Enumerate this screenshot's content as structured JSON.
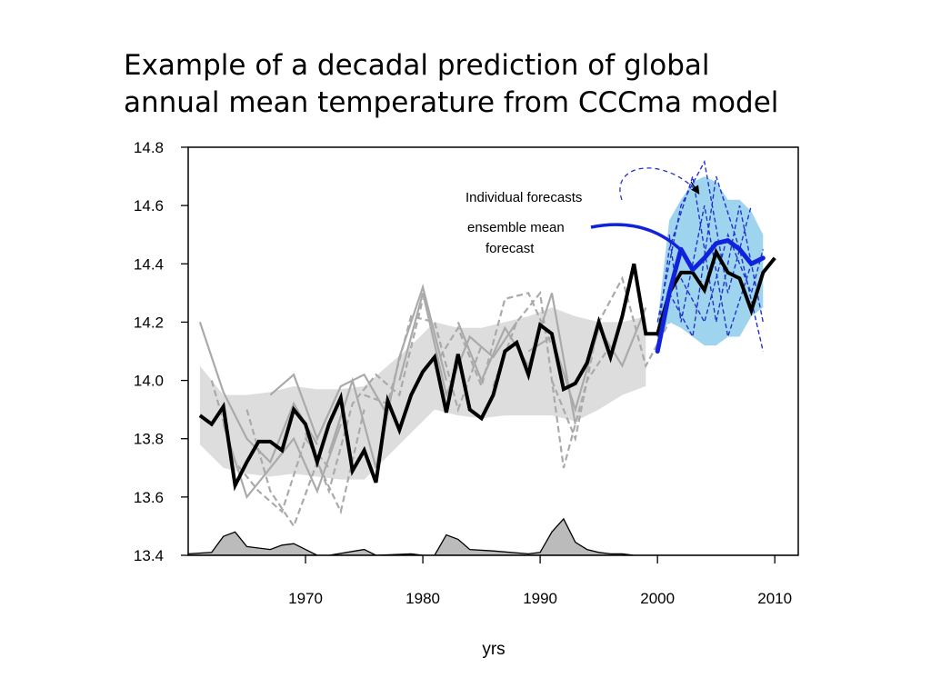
{
  "slide": {
    "title_lines": [
      "Example of a decadal prediction of global",
      "annual mean temperature from CCCma model"
    ]
  },
  "chart_data": {
    "type": "line",
    "xlabel": "yrs",
    "ylabel": "",
    "xlim": [
      1960,
      2012
    ],
    "ylim": [
      13.4,
      14.8
    ],
    "x_ticks": [
      1970,
      1980,
      1990,
      2000,
      2010
    ],
    "y_ticks": [
      "13.4",
      "13.6",
      "13.8",
      "14.0",
      "14.2",
      "14.4",
      "14.6",
      "14.8"
    ],
    "grid": false,
    "annotations": {
      "individual_forecasts": "Individual forecasts",
      "ensemble_mean_line1": "ensemble mean",
      "ensemble_mean_line2": "forecast"
    },
    "colors": {
      "observed": "#000000",
      "hindcast_members": "#aaaaaa",
      "hindcast_spread": "#dddddd",
      "forecast_members": "#2233cc",
      "forecast_mean": "#1122dd",
      "forecast_spread": "#9fd4ee",
      "volcanic": "#bbbbbb"
    },
    "series": [
      {
        "role": "observed",
        "x": [
          1961,
          1962,
          1963,
          1964,
          1965,
          1966,
          1967,
          1968,
          1969,
          1970,
          1971,
          1972,
          1973,
          1974,
          1975,
          1976,
          1977,
          1978,
          1979,
          1980,
          1981,
          1982,
          1983,
          1984,
          1985,
          1986,
          1987,
          1988,
          1989,
          1990,
          1991,
          1992,
          1993,
          1994,
          1995,
          1996,
          1997,
          1998,
          1999,
          2000,
          2001,
          2002,
          2003,
          2004,
          2005,
          2006,
          2007,
          2008,
          2009,
          2010
        ],
        "values": [
          13.88,
          13.85,
          13.91,
          13.64,
          13.72,
          13.79,
          13.79,
          13.76,
          13.9,
          13.85,
          13.72,
          13.85,
          13.94,
          13.69,
          13.76,
          13.65,
          13.93,
          13.83,
          13.95,
          14.03,
          14.08,
          13.89,
          14.09,
          13.9,
          13.87,
          13.95,
          14.1,
          14.13,
          14.02,
          14.19,
          14.16,
          13.97,
          13.99,
          14.06,
          14.2,
          14.08,
          14.22,
          14.4,
          14.16,
          14.16,
          14.3,
          14.37,
          14.37,
          14.31,
          14.44,
          14.37,
          14.35,
          14.24,
          14.37,
          14.42
        ]
      },
      {
        "role": "hindcast_spread",
        "x": [
          1961,
          1963,
          1965,
          1967,
          1969,
          1971,
          1973,
          1975,
          1977,
          1979,
          1981,
          1983,
          1985,
          1987,
          1989,
          1991,
          1993,
          1995,
          1997,
          1999
        ],
        "upper": [
          14.05,
          13.95,
          13.95,
          13.96,
          13.98,
          13.97,
          13.97,
          13.98,
          14.05,
          14.12,
          14.2,
          14.18,
          14.18,
          14.2,
          14.22,
          14.25,
          14.22,
          14.2,
          14.2,
          14.22
        ],
        "lower": [
          13.78,
          13.7,
          13.68,
          13.67,
          13.68,
          13.67,
          13.66,
          13.66,
          13.74,
          13.82,
          13.9,
          13.88,
          13.87,
          13.88,
          13.88,
          13.88,
          13.86,
          13.9,
          13.95,
          13.98
        ]
      },
      {
        "role": "hindcast_members",
        "members": [
          {
            "x": [
              1961,
              1963,
              1965,
              1967,
              1969,
              1971
            ],
            "values": [
              14.2,
              13.96,
              13.8,
              13.72,
              13.92,
              13.78
            ]
          },
          {
            "x": [
              1962,
              1964,
              1966,
              1968,
              1970,
              1972
            ],
            "values": [
              14.0,
              13.72,
              13.62,
              13.55,
              13.8,
              13.7
            ]
          },
          {
            "x": [
              1963,
              1965,
              1967,
              1969,
              1971,
              1973
            ],
            "values": [
              13.85,
              13.6,
              13.7,
              13.8,
              13.62,
              13.85
            ]
          },
          {
            "x": [
              1965,
              1967,
              1969,
              1971,
              1973,
              1975
            ],
            "values": [
              13.9,
              13.62,
              13.5,
              13.72,
              13.55,
              13.9
            ]
          },
          {
            "x": [
              1967,
              1969,
              1971,
              1973,
              1975,
              1977
            ],
            "values": [
              13.95,
              14.02,
              13.8,
              13.98,
              14.02,
              13.88
            ]
          },
          {
            "x": [
              1970,
              1972,
              1974,
              1976,
              1978,
              1980
            ],
            "values": [
              13.82,
              13.62,
              13.92,
              14.02,
              13.95,
              14.28
            ]
          },
          {
            "x": [
              1972,
              1974,
              1976,
              1978,
              1980,
              1982
            ],
            "values": [
              13.75,
              14.0,
              13.7,
              14.08,
              14.32,
              14.0
            ]
          },
          {
            "x": [
              1975,
              1977,
              1979,
              1981,
              1983,
              1985
            ],
            "values": [
              13.95,
              13.92,
              14.22,
              14.2,
              13.9,
              14.12
            ]
          },
          {
            "x": [
              1978,
              1980,
              1982,
              1984,
              1986,
              1988
            ],
            "values": [
              14.0,
              14.3,
              13.95,
              14.15,
              14.08,
              14.2
            ]
          },
          {
            "x": [
              1981,
              1983,
              1985,
              1987,
              1989,
              1991
            ],
            "values": [
              14.05,
              14.18,
              13.98,
              14.28,
              14.3,
              14.12
            ]
          },
          {
            "x": [
              1983,
              1985,
              1987,
              1989,
              1991,
              1993
            ],
            "values": [
              14.2,
              14.0,
              14.18,
              14.05,
              14.3,
              13.85
            ]
          },
          {
            "x": [
              1986,
              1988,
              1990,
              1992,
              1994,
              1996
            ],
            "values": [
              13.98,
              14.2,
              14.3,
              13.7,
              14.0,
              14.12
            ]
          },
          {
            "x": [
              1989,
              1991,
              1993,
              1995,
              1997,
              1999
            ],
            "values": [
              14.1,
              14.15,
              13.9,
              14.18,
              14.05,
              14.25
            ]
          },
          {
            "x": [
              1991,
              1993,
              1995,
              1997,
              1999,
              2001
            ],
            "values": [
              14.0,
              13.8,
              14.2,
              14.35,
              14.05,
              14.2
            ]
          }
        ]
      },
      {
        "role": "forecast_spread",
        "x": [
          2000,
          2001,
          2002,
          2003,
          2004,
          2005,
          2006,
          2007,
          2008,
          2009
        ],
        "upper": [
          14.2,
          14.55,
          14.62,
          14.68,
          14.7,
          14.68,
          14.62,
          14.62,
          14.58,
          14.5
        ],
        "lower": [
          14.15,
          14.2,
          14.18,
          14.15,
          14.12,
          14.12,
          14.15,
          14.15,
          14.22,
          14.25
        ]
      },
      {
        "role": "forecast_members",
        "members": [
          {
            "x": [
              2000,
              2002,
              2004,
              2006,
              2008
            ],
            "values": [
              14.2,
              14.6,
              14.75,
              14.3,
              14.6
            ]
          },
          {
            "x": [
              2001,
              2003,
              2005,
              2007,
              2009
            ],
            "values": [
              14.3,
              14.15,
              14.7,
              14.45,
              14.1
            ]
          },
          {
            "x": [
              2000,
              2001,
              2003,
              2005,
              2007,
              2009
            ],
            "values": [
              14.15,
              14.45,
              14.7,
              14.2,
              14.6,
              14.2
            ]
          },
          {
            "x": [
              2001,
              2002,
              2004,
              2006,
              2008
            ],
            "values": [
              14.5,
              14.2,
              14.6,
              14.15,
              14.4
            ]
          },
          {
            "x": [
              2002,
              2004,
              2006,
              2008,
              2009
            ],
            "values": [
              14.35,
              14.2,
              14.5,
              14.3,
              14.45
            ]
          }
        ]
      },
      {
        "role": "forecast_mean",
        "x": [
          2000,
          2001,
          2002,
          2003,
          2004,
          2005,
          2006,
          2007,
          2008,
          2009
        ],
        "values": [
          14.1,
          14.3,
          14.45,
          14.38,
          14.42,
          14.47,
          14.48,
          14.45,
          14.4,
          14.42
        ]
      },
      {
        "role": "volcanic",
        "x": [
          1960,
          1962,
          1963,
          1964,
          1965,
          1967,
          1968,
          1969,
          1970,
          1971,
          1972,
          1975,
          1976,
          1979,
          1980,
          1981,
          1982,
          1983,
          1984,
          1986,
          1989,
          1990,
          1991,
          1992,
          1993,
          1994,
          1995,
          1996,
          1997,
          1998,
          2000,
          2005,
          2012
        ],
        "values": [
          13.405,
          13.41,
          13.465,
          13.48,
          13.43,
          13.42,
          13.435,
          13.44,
          13.42,
          13.4,
          13.4,
          13.42,
          13.4,
          13.405,
          13.4,
          13.4,
          13.47,
          13.455,
          13.42,
          13.415,
          13.405,
          13.41,
          13.48,
          13.525,
          13.445,
          13.42,
          13.41,
          13.405,
          13.405,
          13.4,
          13.4,
          13.4,
          13.4
        ]
      }
    ]
  }
}
